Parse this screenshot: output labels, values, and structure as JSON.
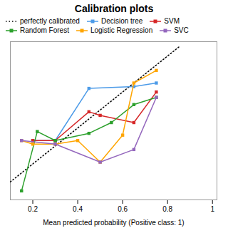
{
  "chart_data": {
    "type": "line",
    "title": "Calibration plots",
    "xlabel": "Mean predicted probability (Positive class: 1)",
    "series": [
      {
        "name": "perfectly calibrated",
        "color": "#000000",
        "line_style": "dotted",
        "x": [
          0.1,
          0.85
        ],
        "values": [
          0.1,
          0.85
        ]
      },
      {
        "name": "Decision tree",
        "color": "#4c9be8",
        "marker": "square",
        "x": [
          0.2,
          0.3,
          0.45,
          0.65,
          0.75
        ],
        "values": [
          0.33,
          0.33,
          0.62,
          0.63,
          0.65
        ]
      },
      {
        "name": "SVM",
        "color": "#d62728",
        "marker": "square",
        "x": [
          0.2,
          0.3,
          0.45,
          0.5,
          0.65,
          0.75
        ],
        "values": [
          0.33,
          0.33,
          0.49,
          0.47,
          0.43,
          0.6
        ]
      },
      {
        "name": "Random Forest",
        "color": "#2ca02c",
        "marker": "square",
        "x": [
          0.15,
          0.22,
          0.3,
          0.45,
          0.55,
          0.65,
          0.75
        ],
        "values": [
          0.05,
          0.38,
          0.33,
          0.37,
          0.43,
          0.53,
          0.57
        ]
      },
      {
        "name": "Logistic Regression",
        "color": "#ffa500",
        "marker": "square",
        "x": [
          0.15,
          0.2,
          0.3,
          0.4,
          0.5,
          0.6,
          0.65,
          0.75
        ],
        "values": [
          0.33,
          0.31,
          0.31,
          0.33,
          0.21,
          0.36,
          0.65,
          0.72
        ]
      },
      {
        "name": "SVC",
        "color": "#9467bd",
        "marker": "square",
        "x": [
          0.15,
          0.3,
          0.5,
          0.65,
          0.75
        ],
        "values": [
          0.33,
          0.31,
          0.21,
          0.28,
          0.57
        ]
      }
    ],
    "xlim": [
      0.1,
      1.02
    ],
    "ylim": [
      0.0,
      0.88
    ],
    "xticks": [
      0.2,
      0.4,
      0.6,
      0.8,
      1
    ],
    "tick_labels": "x",
    "legend": "upper left"
  }
}
